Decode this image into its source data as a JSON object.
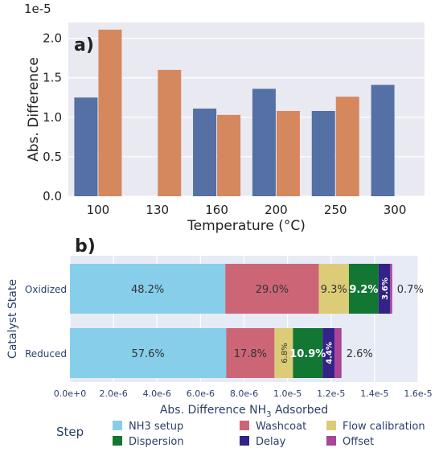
{
  "chart_data": [
    {
      "type": "bar",
      "panel_label": "a)",
      "scale_label": "1e-5",
      "ylabel": "Abs. Difference",
      "xlabel": "Temperature (°C)",
      "categories": [
        "100",
        "130",
        "160",
        "200",
        "250",
        "300"
      ],
      "ylim": [
        0,
        2.2
      ],
      "yticks": [
        "0.0",
        "0.5",
        "1.0",
        "1.5",
        "2.0"
      ],
      "grid": true,
      "colors": [
        "#5470a4",
        "#d5875e"
      ],
      "series": [
        {
          "values": [
            1.25,
            null,
            1.11,
            1.36,
            1.08,
            1.41
          ]
        },
        {
          "values": [
            2.11,
            1.6,
            1.03,
            1.08,
            1.26,
            null
          ]
        }
      ]
    },
    {
      "type": "bar",
      "orientation": "horizontal",
      "stacked": true,
      "panel_label": "b)",
      "ylabel": "Catalyst State",
      "xlabel_pre": "Abs. Difference NH",
      "xlabel_sub": "3",
      "xlabel_post": " Adsorbed",
      "xlim": [
        0,
        1.6e-05
      ],
      "xticks": [
        "0.0e+0",
        "2.0e-6",
        "4.0e-6",
        "6.0e-6",
        "8.0e-6",
        "1.0e-5",
        "1.2e-5",
        "1.4e-5",
        "1.6e-5"
      ],
      "categories": [
        "Oxidized",
        "Reduced"
      ],
      "legend_title": "Step",
      "legend_position": "bottom",
      "series": [
        {
          "name": "NH3 setup",
          "color": "#87ceeb",
          "values": [
            7.14e-06,
            7.18e-06
          ],
          "labels": [
            "48.2%",
            "57.6%"
          ]
        },
        {
          "name": "Washcoat",
          "color": "#cc6677",
          "values": [
            4.3e-06,
            2.22e-06
          ],
          "labels": [
            "29.0%",
            "17.8%"
          ]
        },
        {
          "name": "Flow calibration",
          "color": "#ddcc77",
          "values": [
            1.38e-06,
            8.5e-07
          ],
          "labels": [
            "9.3%",
            "6.8%"
          ]
        },
        {
          "name": "Dispersion",
          "color": "#117733",
          "values": [
            1.36e-06,
            1.36e-06
          ],
          "labels": [
            "9.2%",
            "10.9%"
          ]
        },
        {
          "name": "Delay",
          "color": "#332288",
          "values": [
            5.3e-07,
            5.5e-07
          ],
          "labels": [
            "3.6%",
            "4.4%"
          ]
        },
        {
          "name": "Offset",
          "color": "#aa4499",
          "values": [
            1e-07,
            3.2e-07
          ],
          "labels": [
            "0.7%",
            "2.6%"
          ]
        }
      ]
    }
  ]
}
